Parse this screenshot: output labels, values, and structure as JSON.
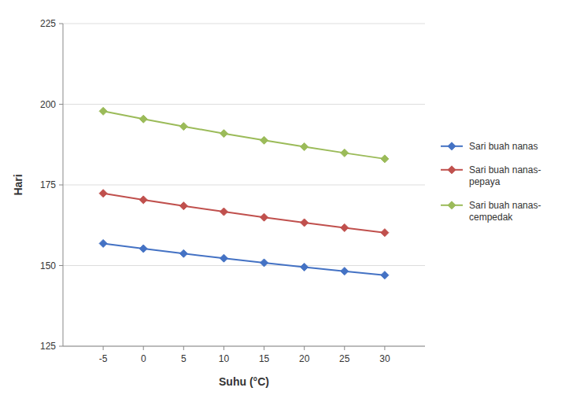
{
  "chart_data": {
    "type": "line",
    "xlabel": "Suhu (°C)",
    "ylabel": "Hari",
    "x": [
      -5,
      0,
      5,
      10,
      15,
      20,
      25,
      30
    ],
    "series": [
      {
        "name": "Sari buah nanas",
        "color": "#4472C4",
        "values": [
          156.85,
          155.25,
          153.72,
          152.27,
          150.87,
          149.53,
          148.26,
          147.03
        ]
      },
      {
        "name": "Sari buah nanas-\npepaya",
        "color": "#C0504D",
        "values": [
          172.39,
          170.39,
          168.5,
          166.69,
          164.96,
          163.31,
          161.73,
          160.21
        ]
      },
      {
        "name": "Sari buah nanas-\ncempedak",
        "color": "#9BBB59",
        "values": [
          197.85,
          195.43,
          193.13,
          190.93,
          188.83,
          186.83,
          184.91,
          183.08
        ]
      }
    ],
    "xlim": [
      -10,
      35
    ],
    "xticks": [
      -5,
      0,
      5,
      10,
      15,
      20,
      25,
      30
    ],
    "ylim": [
      125,
      225
    ],
    "yticks": [
      125,
      150,
      175,
      200,
      225
    ],
    "grid": true,
    "legend": "right",
    "marker": "diamond"
  }
}
